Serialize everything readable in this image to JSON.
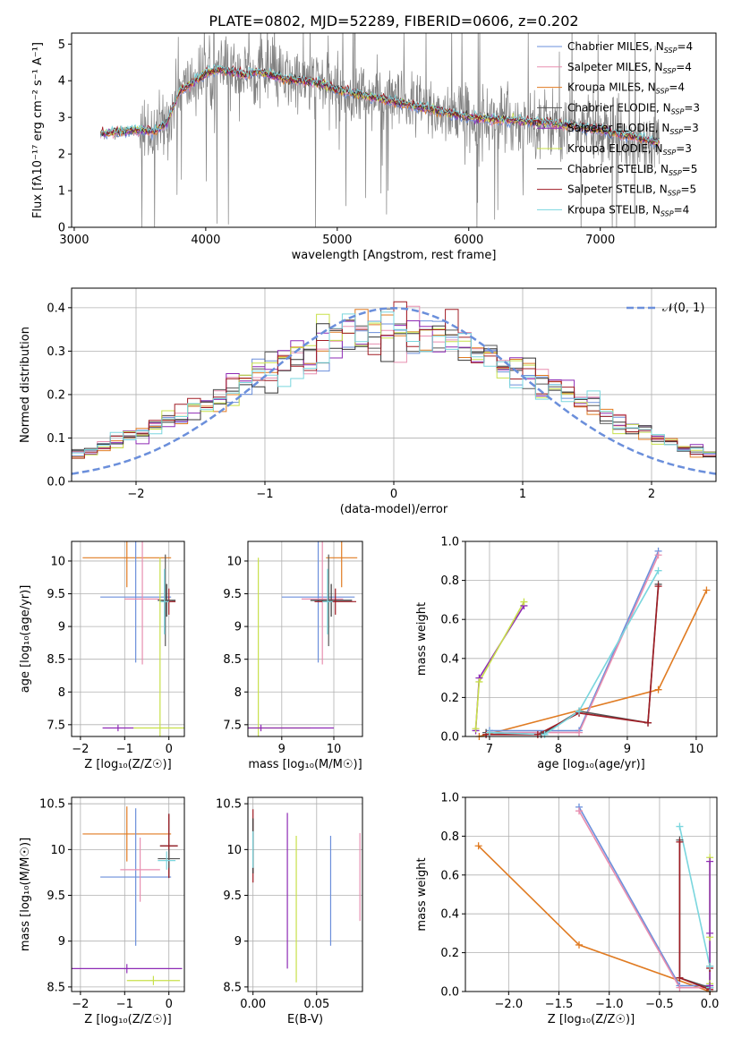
{
  "title": "PLATE=0802, MJD=52289, FIBERID=0606, z=0.202",
  "colors": {
    "chabrier_miles": "#6b8fdb",
    "salpeter_miles": "#e88fb0",
    "kroupa_miles": "#e07b22",
    "chabrier_elodie": "#555555",
    "salpeter_elodie": "#8e2bb5",
    "kroupa_elodie": "#c8e04a",
    "chabrier_stelib": "#333333",
    "salpeter_stelib": "#a01c24",
    "kroupa_stelib": "#7ad6de",
    "spectrum": "#808080",
    "normal_curve": "#6b8fdb"
  },
  "chart_data": [
    {
      "id": "spectrum",
      "type": "line",
      "xlabel": "wavelength [Angstrom, rest frame]",
      "ylabel": "Flux [f$_\\lambda$10$^{-17}$ erg cm$^{-2}$ s$^{-1}$ A$^{-1}$]",
      "ylabel_display": "Flux [fλ10⁻¹⁷ erg cm⁻² s⁻¹ A⁻¹]",
      "xlim": [
        2980,
        7880
      ],
      "ylim": [
        0,
        5.3
      ],
      "xticks": [
        3000,
        4000,
        5000,
        6000,
        7000
      ],
      "yticks": [
        0,
        1,
        2,
        3,
        4,
        5
      ],
      "grid": false,
      "legend_position": "top-right",
      "legend": [
        {
          "name": "Chabrier MILES, N",
          "sub": "SSP",
          "suffix": "=4",
          "color_key": "chabrier_miles"
        },
        {
          "name": "Salpeter MILES, N",
          "sub": "SSP",
          "suffix": "=4",
          "color_key": "salpeter_miles"
        },
        {
          "name": "Kroupa MILES, N",
          "sub": "SSP",
          "suffix": "=4",
          "color_key": "kroupa_miles"
        },
        {
          "name": "Chabrier ELODIE, N",
          "sub": "SSP",
          "suffix": "=3",
          "color_key": "chabrier_elodie"
        },
        {
          "name": "Salpeter ELODIE, N",
          "sub": "SSP",
          "suffix": "=3",
          "color_key": "salpeter_elodie"
        },
        {
          "name": "Kroupa ELODIE, N",
          "sub": "SSP",
          "suffix": "=3",
          "color_key": "kroupa_elodie"
        },
        {
          "name": "Chabrier STELIB, N",
          "sub": "SSP",
          "suffix": "=5",
          "color_key": "chabrier_stelib"
        },
        {
          "name": "Salpeter STELIB, N",
          "sub": "SSP",
          "suffix": "=5",
          "color_key": "salpeter_stelib"
        },
        {
          "name": "Kroupa STELIB, N",
          "sub": "SSP",
          "suffix": "=4",
          "color_key": "kroupa_stelib"
        }
      ],
      "continuum": [
        [
          3200,
          2.55
        ],
        [
          3300,
          2.6
        ],
        [
          3400,
          2.62
        ],
        [
          3500,
          2.65
        ],
        [
          3600,
          2.6
        ],
        [
          3700,
          2.8
        ],
        [
          3800,
          3.7
        ],
        [
          3900,
          3.95
        ],
        [
          4000,
          4.2
        ],
        [
          4100,
          4.3
        ],
        [
          4200,
          4.25
        ],
        [
          4300,
          4.15
        ],
        [
          4400,
          4.25
        ],
        [
          4500,
          4.15
        ],
        [
          4600,
          4.05
        ],
        [
          4700,
          4.0
        ],
        [
          4800,
          3.95
        ],
        [
          4900,
          3.9
        ],
        [
          5000,
          3.75
        ],
        [
          5200,
          3.6
        ],
        [
          5400,
          3.45
        ],
        [
          5600,
          3.3
        ],
        [
          5800,
          3.15
        ],
        [
          6000,
          3.0
        ],
        [
          6200,
          2.95
        ],
        [
          6400,
          2.9
        ],
        [
          6600,
          2.85
        ],
        [
          6800,
          2.75
        ],
        [
          7000,
          2.65
        ],
        [
          7200,
          2.5
        ],
        [
          7400,
          2.35
        ]
      ],
      "spectrum_range": [
        3200,
        7450
      ],
      "noisy_start": 3500
    },
    {
      "id": "residuals",
      "type": "histogram",
      "xlabel": "(data-model)/error",
      "ylabel": "Normed distribution",
      "xlim": [
        -2.5,
        2.5
      ],
      "ylim": [
        0,
        0.445
      ],
      "xticks": [
        -2,
        -1,
        0,
        1,
        2
      ],
      "yticks": [
        0.0,
        0.1,
        0.2,
        0.3,
        0.4
      ],
      "grid": true,
      "bin_width": 0.1,
      "legend_position": "top-right",
      "legend": [
        {
          "name": "𝒩(0, 1)",
          "color_key": "normal_curve"
        }
      ],
      "normal": {
        "mean": 0,
        "sigma": 1
      }
    },
    {
      "id": "age-vs-Z",
      "type": "errorbar",
      "xlabel": "Z [log₁₀(Z/Z☉)]",
      "ylabel": "age  [log₁₀(age/yr)]",
      "xlim": [
        -2.2,
        0.35
      ],
      "ylim": [
        7.32,
        10.3
      ],
      "xticks": [
        -2,
        -1,
        0
      ],
      "yticks": [
        7.5,
        8.0,
        8.5,
        9.0,
        9.5,
        10.0
      ],
      "grid": true,
      "points": [
        {
          "color_key": "kroupa_miles",
          "x": -0.95,
          "y": 10.05,
          "xerr": 1.0,
          "yerr": 0.45
        },
        {
          "color_key": "chabrier_miles",
          "x": -0.75,
          "y": 9.45,
          "xerr": 0.8,
          "yerr": 1.0
        },
        {
          "color_key": "salpeter_miles",
          "x": -0.6,
          "y": 9.42,
          "xerr": 0.4,
          "yerr": 1.0
        },
        {
          "color_key": "chabrier_stelib",
          "x": -0.05,
          "y": 9.4,
          "xerr": 0.2,
          "yerr": 0.25
        },
        {
          "color_key": "salpeter_stelib",
          "x": 0.0,
          "y": 9.38,
          "xerr": 0.15,
          "yerr": 0.2
        },
        {
          "color_key": "chabrier_elodie",
          "x": -0.08,
          "y": 9.4,
          "xerr": 0.15,
          "yerr": 0.7
        },
        {
          "color_key": "kroupa_stelib",
          "x": -0.1,
          "y": 9.38,
          "xerr": 0.1,
          "yerr": 0.5
        },
        {
          "color_key": "kroupa_elodie",
          "x": -0.2,
          "y": 7.45,
          "xerr": 0.6,
          "yerr": 2.6
        },
        {
          "color_key": "salpeter_elodie",
          "x": -1.15,
          "y": 7.45,
          "xerr": 0.35,
          "yerr": 0.05
        }
      ]
    },
    {
      "id": "age-vs-mass",
      "type": "errorbar",
      "xlabel": "mass [log₁₀(M/M☉)]",
      "ylabel": "",
      "xlim": [
        8.35,
        10.55
      ],
      "ylim": [
        7.32,
        10.3
      ],
      "xticks": [
        9,
        10
      ],
      "yticks": [
        7.5,
        8.0,
        8.5,
        9.0,
        9.5,
        10.0
      ],
      "grid": true,
      "points": [
        {
          "color_key": "kroupa_miles",
          "x": 10.15,
          "y": 10.05,
          "xerr": 0.3,
          "yerr": 0.45
        },
        {
          "color_key": "chabrier_miles",
          "x": 9.7,
          "y": 9.45,
          "xerr": 0.7,
          "yerr": 1.0
        },
        {
          "color_key": "salpeter_miles",
          "x": 9.78,
          "y": 9.42,
          "xerr": 0.4,
          "yerr": 1.0
        },
        {
          "color_key": "chabrier_stelib",
          "x": 9.95,
          "y": 9.4,
          "xerr": 0.4,
          "yerr": 0.25
        },
        {
          "color_key": "salpeter_stelib",
          "x": 10.03,
          "y": 9.38,
          "xerr": 0.4,
          "yerr": 0.2
        },
        {
          "color_key": "chabrier_elodie",
          "x": 9.9,
          "y": 9.4,
          "xerr": 0.1,
          "yerr": 0.7
        },
        {
          "color_key": "kroupa_stelib",
          "x": 9.88,
          "y": 9.38,
          "xerr": 0.1,
          "yerr": 0.5
        },
        {
          "color_key": "kroupa_elodie",
          "x": 8.55,
          "y": 7.45,
          "xerr": 1.0,
          "yerr": 2.6
        },
        {
          "color_key": "salpeter_elodie",
          "x": 8.6,
          "y": 7.45,
          "xerr": 1.4,
          "yerr": 0.05
        }
      ]
    },
    {
      "id": "weight-vs-age",
      "type": "line",
      "xlabel": "age  [log₁₀(age/yr)]",
      "ylabel": "mass weight",
      "xlim": [
        6.65,
        10.3
      ],
      "ylim": [
        0,
        1.0
      ],
      "xticks": [
        7,
        8,
        9,
        10
      ],
      "yticks": [
        0.0,
        0.2,
        0.4,
        0.6,
        0.8,
        1.0
      ],
      "grid": true,
      "series": [
        {
          "color_key": "kroupa_miles",
          "x": [
            6.85,
            9.45,
            10.15
          ],
          "y": [
            0.0,
            0.24,
            0.75
          ]
        },
        {
          "color_key": "salpeter_elodie",
          "x": [
            6.8,
            6.85,
            7.5
          ],
          "y": [
            0.03,
            0.3,
            0.67
          ]
        },
        {
          "color_key": "kroupa_elodie",
          "x": [
            6.8,
            6.85,
            7.5
          ],
          "y": [
            0.04,
            0.28,
            0.69
          ]
        },
        {
          "color_key": "chabrier_miles",
          "x": [
            7.0,
            8.3,
            9.45
          ],
          "y": [
            0.03,
            0.03,
            0.95
          ]
        },
        {
          "color_key": "salpeter_miles",
          "x": [
            7.0,
            8.3,
            9.45
          ],
          "y": [
            0.02,
            0.02,
            0.93
          ]
        },
        {
          "color_key": "chabrier_elodie",
          "x": [
            6.95,
            7.75,
            8.3,
            9.3,
            9.45
          ],
          "y": [
            0.02,
            0.01,
            0.13,
            0.07,
            0.78
          ]
        },
        {
          "color_key": "salpeter_stelib",
          "x": [
            6.95,
            7.7,
            8.3,
            9.3,
            9.45
          ],
          "y": [
            0.01,
            0.01,
            0.12,
            0.07,
            0.77
          ]
        },
        {
          "color_key": "kroupa_stelib",
          "x": [
            7.0,
            7.8,
            8.3,
            9.45
          ],
          "y": [
            0.02,
            0.01,
            0.13,
            0.85
          ]
        }
      ]
    },
    {
      "id": "mass-vs-Z",
      "type": "errorbar",
      "xlabel": "Z [log₁₀(Z/Z☉)]",
      "ylabel": "mass [log₁₀(M/M☉)]",
      "xlim": [
        -2.2,
        0.35
      ],
      "ylim": [
        8.45,
        10.57
      ],
      "xticks": [
        -2,
        -1,
        0
      ],
      "yticks": [
        8.5,
        9.0,
        9.5,
        10.0,
        10.5
      ],
      "grid": true,
      "points": [
        {
          "color_key": "kroupa_miles",
          "x": -0.95,
          "y": 10.17,
          "xerr": 1.0,
          "yerr": 0.3
        },
        {
          "color_key": "chabrier_miles",
          "x": -0.75,
          "y": 9.7,
          "xerr": 0.8,
          "yerr": 0.75
        },
        {
          "color_key": "salpeter_miles",
          "x": -0.65,
          "y": 9.78,
          "xerr": 0.45,
          "yerr": 0.35
        },
        {
          "color_key": "chabrier_stelib",
          "x": 0.0,
          "y": 10.04,
          "xerr": 0.2,
          "yerr": 0.35
        },
        {
          "color_key": "salpeter_stelib",
          "x": 0.0,
          "y": 10.04,
          "xerr": 0.2,
          "yerr": 0.35
        },
        {
          "color_key": "chabrier_elodie",
          "x": 0.0,
          "y": 9.9,
          "xerr": 0.25,
          "yerr": 0.1
        },
        {
          "color_key": "kroupa_stelib",
          "x": -0.05,
          "y": 9.88,
          "xerr": 0.2,
          "yerr": 0.1
        },
        {
          "color_key": "kroupa_elodie",
          "x": -0.35,
          "y": 8.57,
          "xerr": 0.6,
          "yerr": 0.05
        },
        {
          "color_key": "salpeter_elodie",
          "x": -0.95,
          "y": 8.7,
          "xerr": 1.25,
          "yerr": 0.05
        }
      ]
    },
    {
      "id": "mass-vs-ebv",
      "type": "errorbar",
      "xlabel": "E(B-V)",
      "ylabel": "",
      "xlim": [
        -0.004,
        0.086
      ],
      "ylim": [
        8.45,
        10.57
      ],
      "xticks": [
        0.0,
        0.05
      ],
      "xtick_labels": [
        "0.00",
        "0.05"
      ],
      "yticks": [
        8.5,
        9.0,
        9.5,
        10.0,
        10.5
      ],
      "grid": true,
      "points": [
        {
          "color_key": "salpeter_stelib",
          "x": 0.0,
          "y": 10.04,
          "xerr": 0.0,
          "yerr": 0.4
        },
        {
          "color_key": "chabrier_stelib",
          "x": 0.0,
          "y": 10.04,
          "xerr": 0.0,
          "yerr": 0.3
        },
        {
          "color_key": "kroupa_stelib",
          "x": 0.0,
          "y": 10.0,
          "xerr": 0.0,
          "yerr": 0.2
        },
        {
          "color_key": "salpeter_elodie",
          "x": 0.027,
          "y": 9.55,
          "xerr": 0.0,
          "yerr": 0.85
        },
        {
          "color_key": "kroupa_elodie",
          "x": 0.034,
          "y": 9.35,
          "xerr": 0.0,
          "yerr": 0.8
        },
        {
          "color_key": "chabrier_miles",
          "x": 0.061,
          "y": 9.55,
          "xerr": 0.0,
          "yerr": 0.6
        },
        {
          "color_key": "salpeter_miles",
          "x": 0.084,
          "y": 9.7,
          "xerr": 0.0,
          "yerr": 0.48
        }
      ]
    },
    {
      "id": "weight-vs-Z",
      "type": "line",
      "xlabel": "Z [log₁₀(Z/Z☉)]",
      "ylabel": "mass weight",
      "xlim": [
        -2.43,
        0.07
      ],
      "ylim": [
        0,
        1.0
      ],
      "xticks": [
        -2.0,
        -1.5,
        -1.0,
        -0.5,
        0.0
      ],
      "xtick_labels": [
        "−2.0",
        "−1.5",
        "−1.0",
        "−0.5",
        "0.0"
      ],
      "yticks": [
        0.0,
        0.2,
        0.4,
        0.6,
        0.8,
        1.0
      ],
      "grid": true,
      "series": [
        {
          "color_key": "kroupa_miles",
          "x": [
            -2.3,
            -1.3,
            0.0
          ],
          "y": [
            0.75,
            0.24,
            0.0
          ]
        },
        {
          "color_key": "chabrier_miles",
          "x": [
            -1.3,
            -0.3,
            0.0
          ],
          "y": [
            0.95,
            0.03,
            0.03
          ]
        },
        {
          "color_key": "salpeter_miles",
          "x": [
            -1.3,
            -0.3,
            0.0
          ],
          "y": [
            0.93,
            0.02,
            0.02
          ]
        },
        {
          "color_key": "chabrier_elodie",
          "x": [
            -0.3,
            -0.3,
            0.0,
            0.0
          ],
          "y": [
            0.78,
            0.07,
            0.02,
            0.13
          ]
        },
        {
          "color_key": "salpeter_stelib",
          "x": [
            -0.3,
            -0.3,
            0.0,
            0.0
          ],
          "y": [
            0.77,
            0.07,
            0.01,
            0.12
          ]
        },
        {
          "color_key": "kroupa_stelib",
          "x": [
            -0.3,
            0.0,
            0.0
          ],
          "y": [
            0.85,
            0.13,
            0.02
          ]
        },
        {
          "color_key": "kroupa_elodie",
          "x": [
            0.0,
            0.0,
            0.0
          ],
          "y": [
            0.69,
            0.28,
            0.04
          ]
        },
        {
          "color_key": "salpeter_elodie",
          "x": [
            0.0,
            0.0,
            0.0
          ],
          "y": [
            0.67,
            0.3,
            0.03
          ]
        }
      ]
    }
  ]
}
